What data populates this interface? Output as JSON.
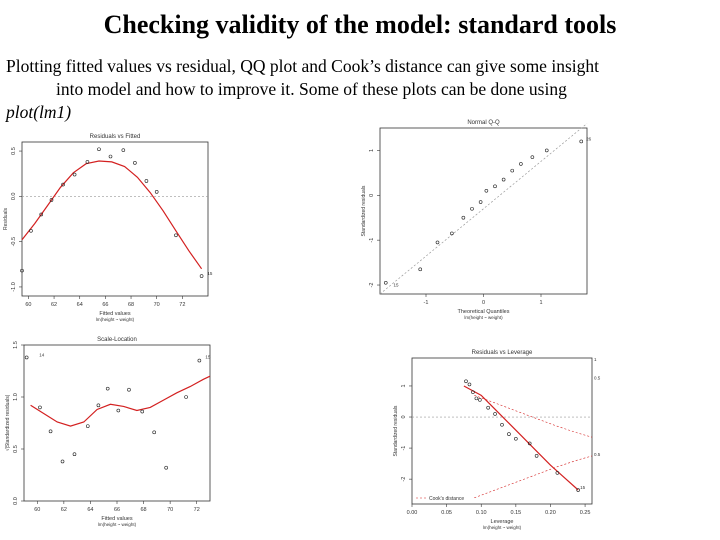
{
  "slide": {
    "title": "Checking validity of the model: standard tools",
    "line1": "Plotting fitted values vs residual, QQ plot and Cook’s distance can give some insight",
    "line2": "into model and how to improve it. Some of these plots can be done using",
    "line3": "plot(lm1)"
  },
  "colors": {
    "smooth": "#d32020",
    "points": "#222222",
    "frame": "#333333",
    "reference": "#999999"
  },
  "chart_data": [
    {
      "type": "scatter",
      "title": "Residuals vs Fitted",
      "xlabel": "Fitted values",
      "sublabel": "lm(height ~ weight)",
      "ylabel": "Residuals",
      "xlim": [
        59.5,
        74
      ],
      "ylim": [
        -1.1,
        0.6
      ],
      "xticks": [
        "60",
        "62",
        "64",
        "66",
        "68",
        "70",
        "72"
      ],
      "yticks": [
        "-1.0",
        "-0.5",
        "0.0",
        "0.5"
      ],
      "zero_line": true,
      "points": [
        [
          59.5,
          -0.82
        ],
        [
          60.2,
          -0.38
        ],
        [
          61.0,
          -0.2
        ],
        [
          61.8,
          -0.04
        ],
        [
          62.7,
          0.13
        ],
        [
          63.6,
          0.24
        ],
        [
          64.6,
          0.38
        ],
        [
          65.5,
          0.52
        ],
        [
          66.4,
          0.44
        ],
        [
          67.4,
          0.51
        ],
        [
          68.3,
          0.37
        ],
        [
          69.2,
          0.17
        ],
        [
          70.0,
          0.05
        ],
        [
          71.5,
          -0.43
        ],
        [
          73.5,
          -0.88
        ]
      ],
      "smooth": [
        [
          59.5,
          -0.48
        ],
        [
          60.5,
          -0.3
        ],
        [
          61.5,
          -0.1
        ],
        [
          62.5,
          0.1
        ],
        [
          63.5,
          0.26
        ],
        [
          64.5,
          0.36
        ],
        [
          65.5,
          0.39
        ],
        [
          66.5,
          0.38
        ],
        [
          67.5,
          0.33
        ],
        [
          68.5,
          0.21
        ],
        [
          69.5,
          0.04
        ],
        [
          70.5,
          -0.16
        ],
        [
          71.5,
          -0.38
        ],
        [
          72.5,
          -0.6
        ],
        [
          73.5,
          -0.8
        ]
      ],
      "labels": [
        {
          "text": "15",
          "x": 73.8,
          "y": -0.88
        }
      ]
    },
    {
      "type": "scatter",
      "title": "Normal Q-Q",
      "xlabel": "Theoretical Quantiles",
      "sublabel": "lm(height ~ weight)",
      "ylabel": "Standardized residuals",
      "xlim": [
        -1.8,
        1.8
      ],
      "ylim": [
        -2.2,
        1.5
      ],
      "xticks": [
        "-1",
        "0",
        "1"
      ],
      "yticks": [
        "-2",
        "-1",
        "0",
        "1"
      ],
      "reference_line": [
        [
          -1.8,
          -2.2
        ],
        [
          1.8,
          1.6
        ]
      ],
      "points": [
        [
          -1.7,
          -1.95
        ],
        [
          -1.1,
          -1.65
        ],
        [
          -0.8,
          -1.05
        ],
        [
          -0.55,
          -0.85
        ],
        [
          -0.35,
          -0.5
        ],
        [
          -0.2,
          -0.3
        ],
        [
          -0.05,
          -0.15
        ],
        [
          0.05,
          0.1
        ],
        [
          0.2,
          0.2
        ],
        [
          0.35,
          0.35
        ],
        [
          0.5,
          0.55
        ],
        [
          0.65,
          0.7
        ],
        [
          0.85,
          0.85
        ],
        [
          1.1,
          1.0
        ],
        [
          1.7,
          1.2
        ]
      ],
      "labels": [
        {
          "text": "15",
          "x": -1.6,
          "y": -2.05
        },
        {
          "text": "26",
          "x": 1.75,
          "y": 1.2
        }
      ]
    },
    {
      "type": "scatter",
      "title": "Scale-Location",
      "xlabel": "Fitted values",
      "sublabel": "lm(height ~ weight)",
      "ylabel": "√|Standardized residuals|",
      "xlim": [
        59,
        73
      ],
      "ylim": [
        0,
        1.5
      ],
      "xticks": [
        "60",
        "62",
        "64",
        "66",
        "68",
        "70",
        "72"
      ],
      "yticks": [
        "0.0",
        "0.5",
        "1.0",
        "1.5"
      ],
      "points": [
        [
          59.2,
          1.38
        ],
        [
          60.2,
          0.9
        ],
        [
          61.0,
          0.67
        ],
        [
          61.9,
          0.38
        ],
        [
          62.8,
          0.45
        ],
        [
          63.8,
          0.72
        ],
        [
          64.6,
          0.92
        ],
        [
          65.3,
          1.08
        ],
        [
          66.1,
          0.87
        ],
        [
          66.9,
          1.07
        ],
        [
          67.9,
          0.86
        ],
        [
          68.8,
          0.66
        ],
        [
          69.7,
          0.32
        ],
        [
          71.2,
          1.0
        ],
        [
          72.2,
          1.35
        ]
      ],
      "smooth": [
        [
          59.5,
          0.92
        ],
        [
          60.5,
          0.84
        ],
        [
          61.5,
          0.76
        ],
        [
          62.5,
          0.72
        ],
        [
          63.5,
          0.76
        ],
        [
          64.5,
          0.88
        ],
        [
          65.5,
          0.93
        ],
        [
          66.5,
          0.91
        ],
        [
          67.5,
          0.87
        ],
        [
          68.5,
          0.9
        ],
        [
          69.5,
          0.97
        ],
        [
          70.5,
          1.04
        ],
        [
          71.5,
          1.1
        ],
        [
          72.5,
          1.17
        ],
        [
          73.0,
          1.2
        ]
      ],
      "labels": [
        {
          "text": "15",
          "x": 72.5,
          "y": 1.36
        },
        {
          "text": "14",
          "x": 60.0,
          "y": 1.38
        }
      ]
    },
    {
      "type": "scatter",
      "title": "Residuals vs Leverage",
      "xlabel": "Leverage",
      "sublabel": "lm(height ~ weight)",
      "ylabel": "Standardized residuals",
      "xlim": [
        0.0,
        0.26
      ],
      "ylim": [
        -2.8,
        1.9
      ],
      "xticks": [
        "0.00",
        "0.05",
        "0.10",
        "0.15",
        "0.20",
        "0.25"
      ],
      "yticks": [
        "-2",
        "-1",
        "0",
        "1"
      ],
      "zero_line": true,
      "legend": "Cook's distance",
      "points": [
        [
          0.078,
          1.15
        ],
        [
          0.083,
          1.05
        ],
        [
          0.088,
          0.8
        ],
        [
          0.093,
          0.6
        ],
        [
          0.098,
          0.55
        ],
        [
          0.11,
          0.3
        ],
        [
          0.12,
          0.1
        ],
        [
          0.13,
          -0.25
        ],
        [
          0.14,
          -0.55
        ],
        [
          0.15,
          -0.7
        ],
        [
          0.17,
          -0.85
        ],
        [
          0.18,
          -1.25
        ],
        [
          0.21,
          -1.8
        ],
        [
          0.24,
          -2.35
        ]
      ],
      "smooth": [
        [
          0.075,
          1.0
        ],
        [
          0.1,
          0.7
        ],
        [
          0.12,
          0.25
        ],
        [
          0.14,
          -0.2
        ],
        [
          0.16,
          -0.65
        ],
        [
          0.18,
          -1.1
        ],
        [
          0.2,
          -1.55
        ],
        [
          0.22,
          -1.95
        ],
        [
          0.24,
          -2.35
        ]
      ],
      "cook": [
        [
          0.09,
          -2.6
        ],
        [
          0.12,
          -2.35
        ],
        [
          0.15,
          -2.1
        ],
        [
          0.18,
          -1.85
        ],
        [
          0.21,
          -1.6
        ],
        [
          0.24,
          -1.38
        ],
        [
          0.26,
          -1.25
        ]
      ],
      "cook_labels": [
        {
          "text": "0.5",
          "x": 0.26,
          "y": -1.25
        },
        {
          "text": "1",
          "x": 0.26,
          "y": 1.8
        },
        {
          "text": "0.5",
          "x": 0.26,
          "y": 1.2
        }
      ],
      "labels": [
        {
          "text": "15",
          "x": 0.24,
          "y": -2.35
        }
      ]
    }
  ]
}
